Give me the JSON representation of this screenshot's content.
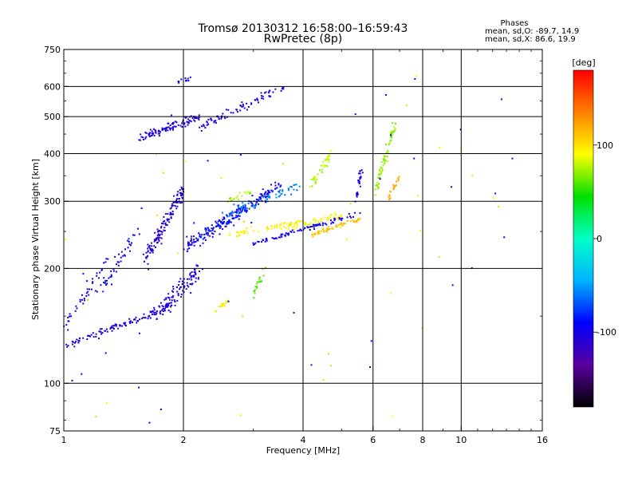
{
  "chart_data": {
    "type": "scatter",
    "title": "Tromsø 20130312 16:58:00–16:59:43",
    "subtitle": "RwPretec (8p)",
    "xlabel": "Frequency [MHz]",
    "ylabel": "Stationary phase Virtual Height [km]",
    "x_scale": "log",
    "y_scale": "log",
    "xlim": [
      1,
      16
    ],
    "ylim": [
      75,
      750
    ],
    "x_ticks": [
      1,
      2,
      4,
      6,
      8,
      10,
      16
    ],
    "y_ticks": [
      75,
      100,
      200,
      300,
      400,
      500,
      600,
      750
    ],
    "grid_x": [
      1,
      2,
      4,
      6,
      8,
      10
    ],
    "grid_y": [
      100,
      200,
      300,
      400,
      500,
      600
    ],
    "stats": {
      "heading": "Phases",
      "line_o": "mean, sd,O: -89.7, 14.9",
      "line_x": "mean, sd,X:  86.6, 19.9"
    },
    "colorbar": {
      "label": "[deg]",
      "min": -180,
      "max": 180,
      "ticks": [
        100,
        0,
        -100
      ],
      "colormap": [
        "#000000",
        "#5a00a0",
        "#0000ff",
        "#00b4ff",
        "#00ffc8",
        "#00e000",
        "#ffff00",
        "#ff8000",
        "#ff0000"
      ]
    },
    "traces": [
      {
        "name": "",
        "x0": 1.0,
        "y0": 125,
        "x1": 1.9,
        "y1": 160,
        "phase": -105,
        "n": 110,
        "spread": 0.035
      },
      {
        "name": "",
        "x0": 1.0,
        "y0": 140,
        "x1": 1.3,
        "y1": 215,
        "phase": -100,
        "n": 40,
        "spread": 0.06
      },
      {
        "name": "",
        "x0": 1.2,
        "y0": 165,
        "x1": 1.55,
        "y1": 255,
        "phase": -95,
        "n": 45,
        "spread": 0.06
      },
      {
        "name": "",
        "x0": 1.6,
        "y0": 210,
        "x1": 2.0,
        "y1": 320,
        "phase": -110,
        "n": 140,
        "spread": 0.08
      },
      {
        "name": "",
        "x0": 1.7,
        "y0": 150,
        "x1": 2.2,
        "y1": 200,
        "phase": -105,
        "n": 110,
        "spread": 0.08
      },
      {
        "name": "",
        "x0": 2.0,
        "y0": 225,
        "x1": 3.5,
        "y1": 330,
        "phase": -100,
        "n": 160,
        "spread": 0.06
      },
      {
        "name": "",
        "x0": 2.2,
        "y0": 240,
        "x1": 3.0,
        "y1": 295,
        "phase": -85,
        "n": 60,
        "spread": 0.05
      },
      {
        "name": "",
        "x0": 1.55,
        "y0": 440,
        "x1": 2.2,
        "y1": 500,
        "phase": -105,
        "n": 110,
        "spread": 0.04
      },
      {
        "name": "",
        "x0": 2.2,
        "y0": 470,
        "x1": 3.6,
        "y1": 600,
        "phase": -100,
        "n": 80,
        "spread": 0.05
      },
      {
        "name": "",
        "x0": 1.93,
        "y0": 620,
        "x1": 2.1,
        "y1": 630,
        "phase": -95,
        "n": 12,
        "spread": 0.02
      },
      {
        "name": "",
        "x0": 2.5,
        "y0": 275,
        "x1": 3.9,
        "y1": 330,
        "phase": -60,
        "n": 70,
        "spread": 0.05
      },
      {
        "name": "",
        "x0": 2.6,
        "y0": 245,
        "x1": 4.0,
        "y1": 265,
        "phase": 95,
        "n": 60,
        "spread": 0.03
      },
      {
        "name": "",
        "x0": 3.6,
        "y0": 255,
        "x1": 5.0,
        "y1": 275,
        "phase": 90,
        "n": 50,
        "spread": 0.03
      },
      {
        "name": "",
        "x0": 3.0,
        "y0": 232,
        "x1": 5.6,
        "y1": 280,
        "phase": -100,
        "n": 90,
        "spread": 0.02
      },
      {
        "name": "",
        "x0": 4.2,
        "y0": 245,
        "x1": 5.6,
        "y1": 270,
        "phase": 110,
        "n": 60,
        "spread": 0.02
      },
      {
        "name": "",
        "x0": 4.2,
        "y0": 330,
        "x1": 4.7,
        "y1": 400,
        "phase": 80,
        "n": 40,
        "spread": 0.05
      },
      {
        "name": "",
        "x0": 5.4,
        "y0": 290,
        "x1": 5.6,
        "y1": 360,
        "phase": -100,
        "n": 25,
        "spread": 0.04
      },
      {
        "name": "",
        "x0": 6.1,
        "y0": 320,
        "x1": 6.8,
        "y1": 480,
        "phase": 70,
        "n": 70,
        "spread": 0.06
      },
      {
        "name": "",
        "x0": 6.5,
        "y0": 300,
        "x1": 7.0,
        "y1": 350,
        "phase": 120,
        "n": 20,
        "spread": 0.05
      },
      {
        "name": "",
        "x0": 3.0,
        "y0": 170,
        "x1": 3.2,
        "y1": 200,
        "phase": 60,
        "n": 20,
        "spread": 0.04
      },
      {
        "name": "",
        "x0": 2.4,
        "y0": 155,
        "x1": 2.6,
        "y1": 165,
        "phase": 90,
        "n": 18,
        "spread": 0.03
      },
      {
        "name": "",
        "x0": 2.6,
        "y0": 300,
        "x1": 3.0,
        "y1": 320,
        "phase": 75,
        "n": 20,
        "spread": 0.03
      },
      {
        "name": "",
        "x0": 1.0,
        "y0": 75,
        "x1": 14.0,
        "y1": 650,
        "phase": 0,
        "n": 70,
        "spread": 0.0
      }
    ]
  }
}
